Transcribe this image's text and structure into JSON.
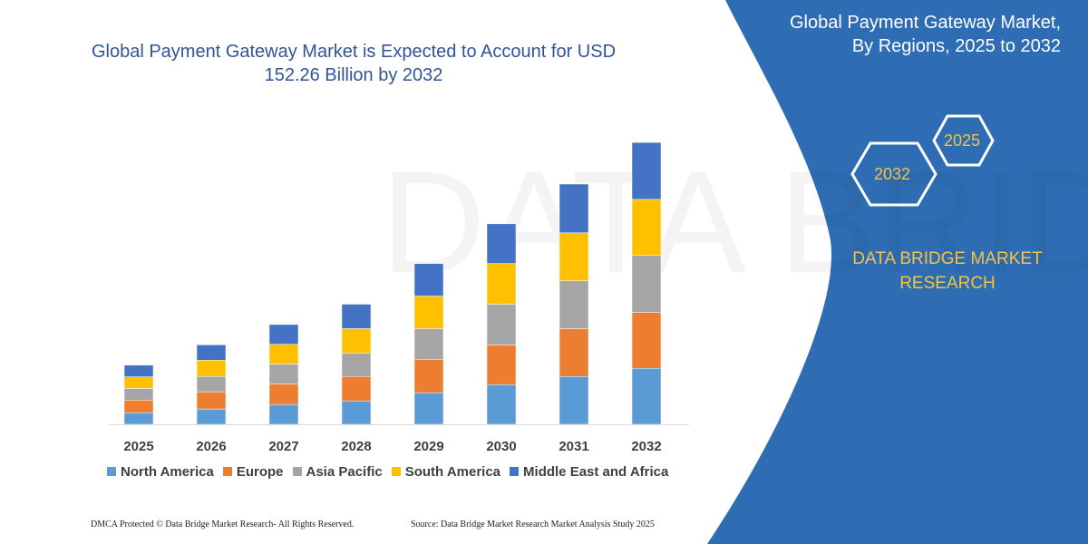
{
  "header": {
    "title_line1": "Global Payment Gateway Market is Expected to Account for USD",
    "title_line2": "152.26 Billion by 2032"
  },
  "side_panel": {
    "title_line1": "Global Payment Gateway Market,",
    "title_line2": "By Regions, 2025 to 2032",
    "hex_start": "2025",
    "hex_end": "2032",
    "brand_line1": "DATA BRIDGE MARKET",
    "brand_line2": "RESEARCH",
    "panel_color": "#2e6db4",
    "accent_color": "#f5c342"
  },
  "footer": {
    "copyright": "DMCA Protected © Data Bridge Market Research-  All Rights Reserved.",
    "source": "Source: Data Bridge Market Research  Market Analysis Study 2025"
  },
  "chart_data": {
    "type": "bar",
    "stacked": true,
    "categories": [
      "2025",
      "2026",
      "2027",
      "2028",
      "2029",
      "2030",
      "2031",
      "2032"
    ],
    "ylim": [
      0,
      156
    ],
    "ylabel": "",
    "xlabel": "",
    "grid": false,
    "legend_position": "bottom",
    "series": [
      {
        "name": "North America",
        "color": "#5b9bd5",
        "values": [
          6.3,
          8.3,
          10.7,
          12.7,
          17.1,
          21.5,
          25.9,
          30.3
        ]
      },
      {
        "name": "Europe",
        "color": "#ed7d31",
        "values": [
          6.8,
          9.3,
          11.2,
          13.2,
          18.1,
          21.5,
          25.9,
          30.3
        ]
      },
      {
        "name": "Asia Pacific",
        "color": "#a5a5a5",
        "values": [
          6.3,
          8.3,
          10.7,
          12.7,
          16.6,
          22.0,
          25.9,
          30.8
        ]
      },
      {
        "name": "South America",
        "color": "#ffc000",
        "values": [
          6.3,
          8.8,
          10.7,
          13.2,
          17.6,
          22.0,
          25.9,
          30.3
        ]
      },
      {
        "name": "Middle East and Africa",
        "color": "#4472c4",
        "values": [
          6.3,
          8.3,
          10.7,
          13.2,
          17.6,
          21.5,
          26.4,
          30.8
        ]
      }
    ]
  }
}
